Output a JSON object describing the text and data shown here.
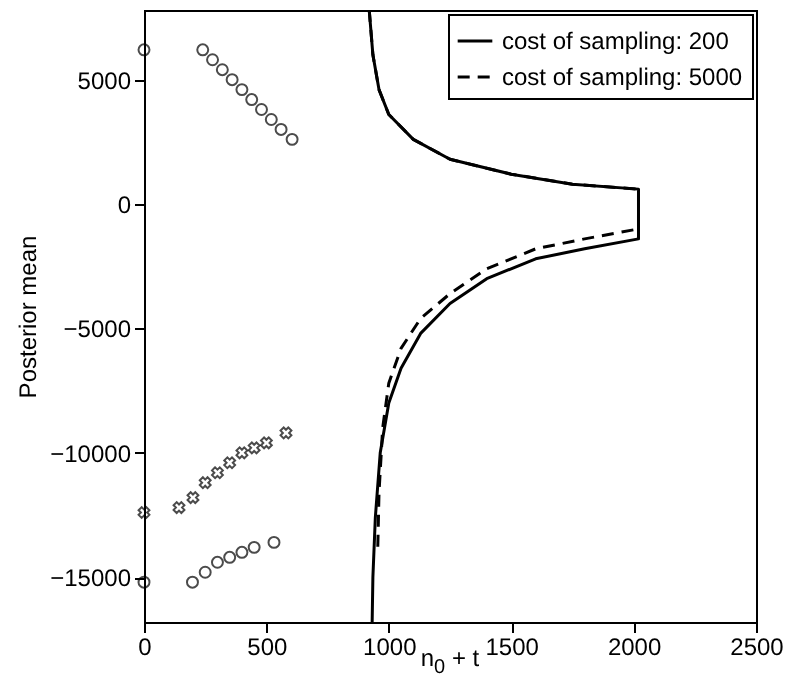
{
  "chart_data": {
    "type": "line",
    "xlabel": "n$_{0}$ + t",
    "ylabel": "Posterior mean",
    "xlim": [
      0,
      2500
    ],
    "xticks": [
      0,
      500,
      1000,
      1500,
      2000,
      2500
    ],
    "ylim": [
      -16800,
      7800
    ],
    "yticks": [
      -15000,
      -10000,
      -5000,
      0,
      5000
    ],
    "grid": false,
    "legend": "top right",
    "series": [
      {
        "name": "cost of sampling: 200",
        "color": "#000000",
        "line_style": "solid",
        "x": [
          920,
          935,
          960,
          1000,
          1100,
          1250,
          1500,
          1750,
          2020,
          2020,
          1800,
          1600,
          1400,
          1250,
          1130,
          1050,
          1000,
          965,
          945,
          935,
          932
        ],
        "values": [
          7800,
          6000,
          4600,
          3600,
          2600,
          1800,
          1200,
          800,
          600,
          -1400,
          -1800,
          -2200,
          -3000,
          -4000,
          -5200,
          -6600,
          -8000,
          -10000,
          -12600,
          -15000,
          -16800
        ]
      },
      {
        "name": "cost of sampling: 5000",
        "color": "#000000",
        "line_style": "dashed",
        "x": [
          920,
          935,
          960,
          1000,
          1100,
          1250,
          1500,
          1750,
          2020,
          2020,
          1800,
          1600,
          1400,
          1250,
          1130,
          1050,
          1000,
          975,
          960,
          955
        ],
        "values": [
          7800,
          6000,
          4600,
          3600,
          2600,
          1800,
          1200,
          800,
          600,
          -1000,
          -1400,
          -1800,
          -2600,
          -3600,
          -4600,
          -5800,
          -7200,
          -9000,
          -11600,
          -13800
        ]
      },
      {
        "type": "scatter",
        "color": "#000000",
        "marker": "circle",
        "x": [
          0,
          240,
          280,
          320,
          360,
          400,
          440,
          480,
          520,
          560,
          605,
          0,
          198,
          250,
          300,
          350,
          400,
          450,
          531
        ],
        "values": [
          6200,
          6200,
          5800,
          5400,
          5000,
          4600,
          4200,
          3800,
          3400,
          3000,
          2600,
          -15200,
          -15200,
          -14800,
          -14400,
          -14200,
          -14000,
          -13800,
          -13600
        ]
      },
      {
        "type": "scatter",
        "color": "#000000",
        "marker": "cross",
        "x": [
          0,
          143,
          200,
          250,
          300,
          350,
          400,
          450,
          500,
          580
        ],
        "values": [
          -12400,
          -12200,
          -11800,
          -11200,
          -10800,
          -10400,
          -10000,
          -9800,
          -9600,
          -9200
        ]
      }
    ]
  }
}
